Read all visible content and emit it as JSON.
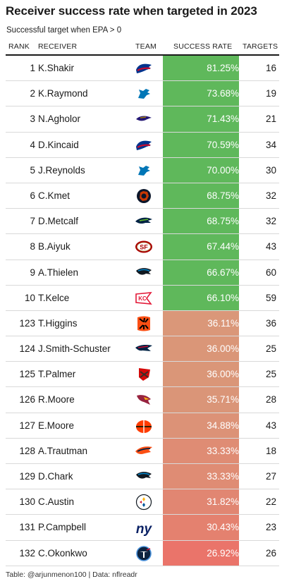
{
  "title": "Receiver success rate when targeted in 2023",
  "subtitle": "Successful target when EPA > 0",
  "columns": [
    "RANK",
    "RECEIVER",
    "TEAM",
    "SUCCESS RATE",
    "TARGETS"
  ],
  "footer": "Table: @arjunmenon100 | Data: nflreadr",
  "colors": {
    "green": "#5fb85b",
    "salmon": "#d89a7a",
    "red": "#ec7068"
  },
  "chart_data": {
    "type": "table",
    "title": "Receiver success rate when targeted in 2023",
    "subtitle": "Successful target when EPA > 0",
    "columns": [
      "RANK",
      "RECEIVER",
      "TEAM",
      "SUCCESS RATE",
      "TARGETS"
    ],
    "rows": [
      {
        "rank": "1",
        "receiver": "K.Shakir",
        "team": "bills",
        "rate": "81.25%",
        "rate_value": 81.25,
        "targets": "16"
      },
      {
        "rank": "2",
        "receiver": "K.Raymond",
        "team": "lions",
        "rate": "73.68%",
        "rate_value": 73.68,
        "targets": "19"
      },
      {
        "rank": "3",
        "receiver": "N.Agholor",
        "team": "ravens",
        "rate": "71.43%",
        "rate_value": 71.43,
        "targets": "21"
      },
      {
        "rank": "4",
        "receiver": "D.Kincaid",
        "team": "bills",
        "rate": "70.59%",
        "rate_value": 70.59,
        "targets": "34"
      },
      {
        "rank": "5",
        "receiver": "J.Reynolds",
        "team": "lions",
        "rate": "70.00%",
        "rate_value": 70.0,
        "targets": "30"
      },
      {
        "rank": "6",
        "receiver": "C.Kmet",
        "team": "bears",
        "rate": "68.75%",
        "rate_value": 68.75,
        "targets": "32"
      },
      {
        "rank": "7",
        "receiver": "D.Metcalf",
        "team": "seahawks",
        "rate": "68.75%",
        "rate_value": 68.75,
        "targets": "32"
      },
      {
        "rank": "8",
        "receiver": "B.Aiyuk",
        "team": "49ers",
        "rate": "67.44%",
        "rate_value": 67.44,
        "targets": "43"
      },
      {
        "rank": "9",
        "receiver": "A.Thielen",
        "team": "panthers",
        "rate": "66.67%",
        "rate_value": 66.67,
        "targets": "60"
      },
      {
        "rank": "10",
        "receiver": "T.Kelce",
        "team": "chiefs",
        "rate": "66.10%",
        "rate_value": 66.1,
        "targets": "59"
      },
      {
        "rank": "123",
        "receiver": "T.Higgins",
        "team": "bengals",
        "rate": "36.11%",
        "rate_value": 36.11,
        "targets": "36"
      },
      {
        "rank": "124",
        "receiver": "J.Smith-Schuster",
        "team": "patriots",
        "rate": "36.00%",
        "rate_value": 36.0,
        "targets": "25"
      },
      {
        "rank": "125",
        "receiver": "T.Palmer",
        "team": "buccaneers",
        "rate": "36.00%",
        "rate_value": 36.0,
        "targets": "25"
      },
      {
        "rank": "126",
        "receiver": "R.Moore",
        "team": "cardinals",
        "rate": "35.71%",
        "rate_value": 35.71,
        "targets": "28"
      },
      {
        "rank": "127",
        "receiver": "E.Moore",
        "team": "browns",
        "rate": "34.88%",
        "rate_value": 34.88,
        "targets": "43"
      },
      {
        "rank": "128",
        "receiver": "A.Trautman",
        "team": "broncos",
        "rate": "33.33%",
        "rate_value": 33.33,
        "targets": "18"
      },
      {
        "rank": "129",
        "receiver": "D.Chark",
        "team": "panthers",
        "rate": "33.33%",
        "rate_value": 33.33,
        "targets": "27"
      },
      {
        "rank": "130",
        "receiver": "C.Austin",
        "team": "steelers",
        "rate": "31.82%",
        "rate_value": 31.82,
        "targets": "22"
      },
      {
        "rank": "131",
        "receiver": "P.Campbell",
        "team": "giants",
        "rate": "30.43%",
        "rate_value": 30.43,
        "targets": "23"
      },
      {
        "rank": "132",
        "receiver": "C.Okonkwo",
        "team": "titans",
        "rate": "26.92%",
        "rate_value": 26.92,
        "targets": "26"
      }
    ],
    "color_scale": {
      "low": "#ec7068",
      "mid": "#d89a7a",
      "high": "#5fb85b"
    }
  }
}
